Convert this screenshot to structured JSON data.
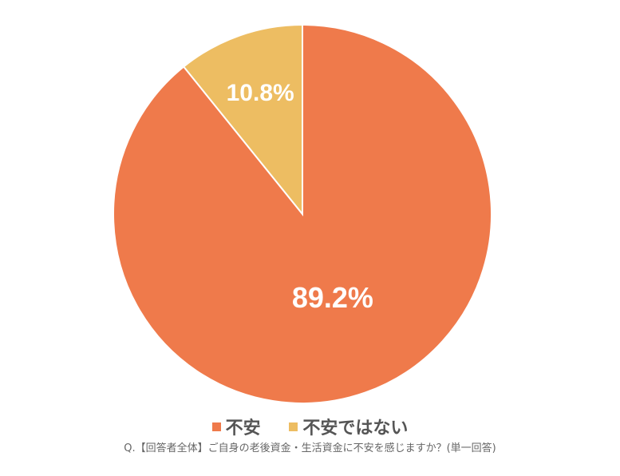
{
  "chart_data": {
    "type": "pie",
    "slices": [
      {
        "label": "不安",
        "value": 89.2,
        "data_label": "89.2%",
        "color": "#EF7A4B"
      },
      {
        "label": "不安ではない",
        "value": 10.8,
        "data_label": "10.8%",
        "color": "#EDBD62"
      }
    ],
    "start_angle": "12 o'clock",
    "direction": "clockwise",
    "legend_placement": "bottom",
    "caption": "Q.【回答者全体】ご自身の老後資金・生活資金に不安を感じますか？(単一回答)"
  }
}
